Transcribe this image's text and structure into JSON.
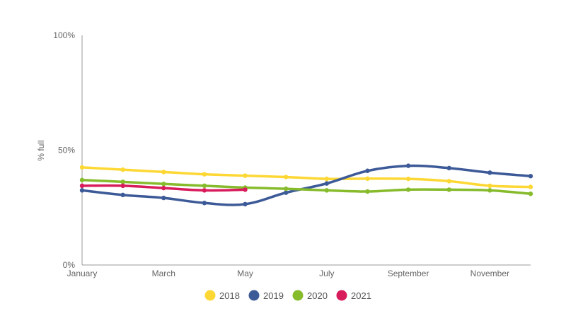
{
  "chart_data": {
    "type": "line",
    "ylabel": "% full",
    "ylim": [
      0,
      100
    ],
    "yticks": [
      {
        "value": 0,
        "label": "0%"
      },
      {
        "value": 50,
        "label": "50%"
      },
      {
        "value": 100,
        "label": "100%"
      }
    ],
    "x_index_range": [
      0,
      11
    ],
    "xticks": [
      {
        "index": 0,
        "label": "January"
      },
      {
        "index": 2,
        "label": "March"
      },
      {
        "index": 4,
        "label": "May"
      },
      {
        "index": 6,
        "label": "July"
      },
      {
        "index": 8,
        "label": "September"
      },
      {
        "index": 10,
        "label": "November"
      }
    ],
    "legend_position": "bottom",
    "grid": false,
    "series": [
      {
        "name": "2018",
        "color": "#fdd835",
        "values": [
          42.5,
          41.5,
          40.5,
          39.5,
          38.9,
          38.3,
          37.5,
          37.6,
          37.5,
          36.5,
          34.5,
          34
        ]
      },
      {
        "name": "2019",
        "color": "#3d5a98",
        "values": [
          32.5,
          30.5,
          29.2,
          27,
          26.5,
          31.5,
          35.5,
          41,
          43.2,
          42.2,
          40.2,
          38.7
        ]
      },
      {
        "name": "2020",
        "color": "#86bb2c",
        "values": [
          37,
          36.2,
          35.3,
          34.5,
          33.7,
          33.2,
          32.5,
          32,
          32.8,
          32.8,
          32.5,
          31
        ]
      },
      {
        "name": "2021",
        "color": "#d81b5a",
        "values": [
          34.5,
          34.5,
          33.5,
          32.5,
          32.8
        ]
      }
    ]
  }
}
